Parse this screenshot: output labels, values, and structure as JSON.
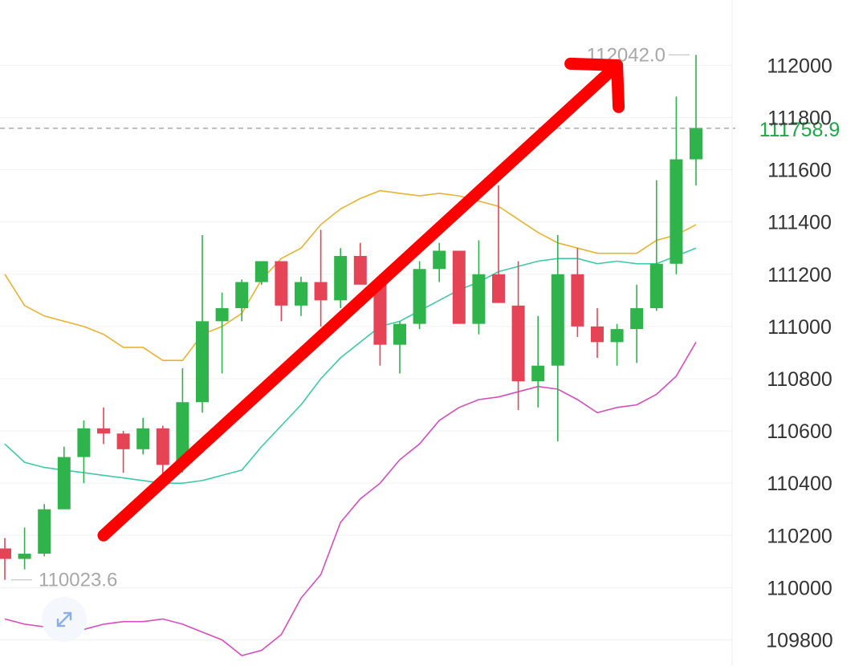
{
  "chart_data": {
    "type": "candlestick",
    "title": "",
    "xlabel": "",
    "ylabel": "",
    "ylim": [
      109700,
      112250
    ],
    "y_ticks": [
      "109800",
      "110000",
      "110200",
      "110400",
      "110600",
      "110800",
      "111000",
      "111200",
      "111400",
      "111600",
      "111800",
      "112000"
    ],
    "grid": true,
    "high_label": "112042.0",
    "low_label": "110023.6",
    "last_price": 111758.9,
    "last_price_label": "111758.9",
    "candles": [
      {
        "o": 110150,
        "h": 110190,
        "l": 110030,
        "c": 110110
      },
      {
        "o": 110110,
        "h": 110230,
        "l": 110070,
        "c": 110130
      },
      {
        "o": 110130,
        "h": 110320,
        "l": 110120,
        "c": 110300
      },
      {
        "o": 110300,
        "h": 110540,
        "l": 110300,
        "c": 110500
      },
      {
        "o": 110500,
        "h": 110640,
        "l": 110400,
        "c": 110610
      },
      {
        "o": 110610,
        "h": 110690,
        "l": 110550,
        "c": 110590
      },
      {
        "o": 110590,
        "h": 110600,
        "l": 110440,
        "c": 110530
      },
      {
        "o": 110530,
        "h": 110650,
        "l": 110510,
        "c": 110610
      },
      {
        "o": 110610,
        "h": 110620,
        "l": 110430,
        "c": 110470
      },
      {
        "o": 110470,
        "h": 110840,
        "l": 110440,
        "c": 110710
      },
      {
        "o": 110710,
        "h": 111350,
        "l": 110670,
        "c": 111020
      },
      {
        "o": 111020,
        "h": 111130,
        "l": 110820,
        "c": 111070
      },
      {
        "o": 111070,
        "h": 111180,
        "l": 111020,
        "c": 111170
      },
      {
        "o": 111170,
        "h": 111250,
        "l": 111160,
        "c": 111250
      },
      {
        "o": 111250,
        "h": 111250,
        "l": 111020,
        "c": 111080
      },
      {
        "o": 111080,
        "h": 111190,
        "l": 111040,
        "c": 111170
      },
      {
        "o": 111170,
        "h": 111370,
        "l": 111000,
        "c": 111100
      },
      {
        "o": 111100,
        "h": 111300,
        "l": 111070,
        "c": 111270
      },
      {
        "o": 111270,
        "h": 111320,
        "l": 111170,
        "c": 111160
      },
      {
        "o": 111160,
        "h": 111200,
        "l": 110850,
        "c": 110930
      },
      {
        "o": 110930,
        "h": 111020,
        "l": 110820,
        "c": 111010
      },
      {
        "o": 111010,
        "h": 111250,
        "l": 110990,
        "c": 111220
      },
      {
        "o": 111220,
        "h": 111320,
        "l": 111170,
        "c": 111290
      },
      {
        "o": 111290,
        "h": 111290,
        "l": 111010,
        "c": 111010
      },
      {
        "o": 111010,
        "h": 111330,
        "l": 110970,
        "c": 111200
      },
      {
        "o": 111200,
        "h": 111540,
        "l": 111090,
        "c": 111090
      },
      {
        "o": 111080,
        "h": 111250,
        "l": 110680,
        "c": 110790
      },
      {
        "o": 110790,
        "h": 111040,
        "l": 110690,
        "c": 110850
      },
      {
        "o": 110850,
        "h": 111350,
        "l": 110560,
        "c": 111200
      },
      {
        "o": 111200,
        "h": 111300,
        "l": 110960,
        "c": 111000
      },
      {
        "o": 111000,
        "h": 111070,
        "l": 110880,
        "c": 110940
      },
      {
        "o": 110940,
        "h": 111010,
        "l": 110850,
        "c": 110990
      },
      {
        "o": 110990,
        "h": 111160,
        "l": 110860,
        "c": 111070
      },
      {
        "o": 111070,
        "h": 111560,
        "l": 111060,
        "c": 111240
      },
      {
        "o": 111240,
        "h": 111880,
        "l": 111200,
        "c": 111640
      },
      {
        "o": 111640,
        "h": 112040,
        "l": 111540,
        "c": 111760
      }
    ],
    "bollinger": {
      "upper_color": "#e8b330",
      "middle_color": "#3ecaa8",
      "lower_color": "#d64dbe",
      "upper": [
        111200,
        111080,
        111040,
        111020,
        111000,
        110970,
        110920,
        110920,
        110870,
        110870,
        110970,
        111000,
        111050,
        111180,
        111260,
        111300,
        111390,
        111450,
        111490,
        111520,
        111510,
        111500,
        111510,
        111500,
        111480,
        111460,
        111410,
        111360,
        111320,
        111300,
        111280,
        111280,
        111280,
        111330,
        111350,
        111390
      ],
      "middle": [
        110550,
        110480,
        110460,
        110450,
        110440,
        110430,
        110420,
        110410,
        110400,
        110400,
        110410,
        110430,
        110450,
        110540,
        110620,
        110700,
        110800,
        110880,
        110940,
        111000,
        111020,
        111060,
        111100,
        111140,
        111170,
        111210,
        111230,
        111250,
        111260,
        111260,
        111240,
        111250,
        111240,
        111240,
        111270,
        111300
      ],
      "lower": [
        109880,
        109860,
        109850,
        109850,
        109840,
        109860,
        109870,
        109870,
        109880,
        109860,
        109830,
        109800,
        109740,
        109760,
        109820,
        109960,
        110050,
        110250,
        110340,
        110400,
        110490,
        110550,
        110640,
        110690,
        110720,
        110730,
        110750,
        110770,
        110760,
        110720,
        110670,
        110690,
        110700,
        110740,
        110810,
        110940
      ]
    },
    "annotation": {
      "type": "arrow",
      "color": "#ff0000",
      "from": {
        "candle": 5,
        "price": 110200
      },
      "to": {
        "candle": 31,
        "price": 112000
      }
    }
  }
}
